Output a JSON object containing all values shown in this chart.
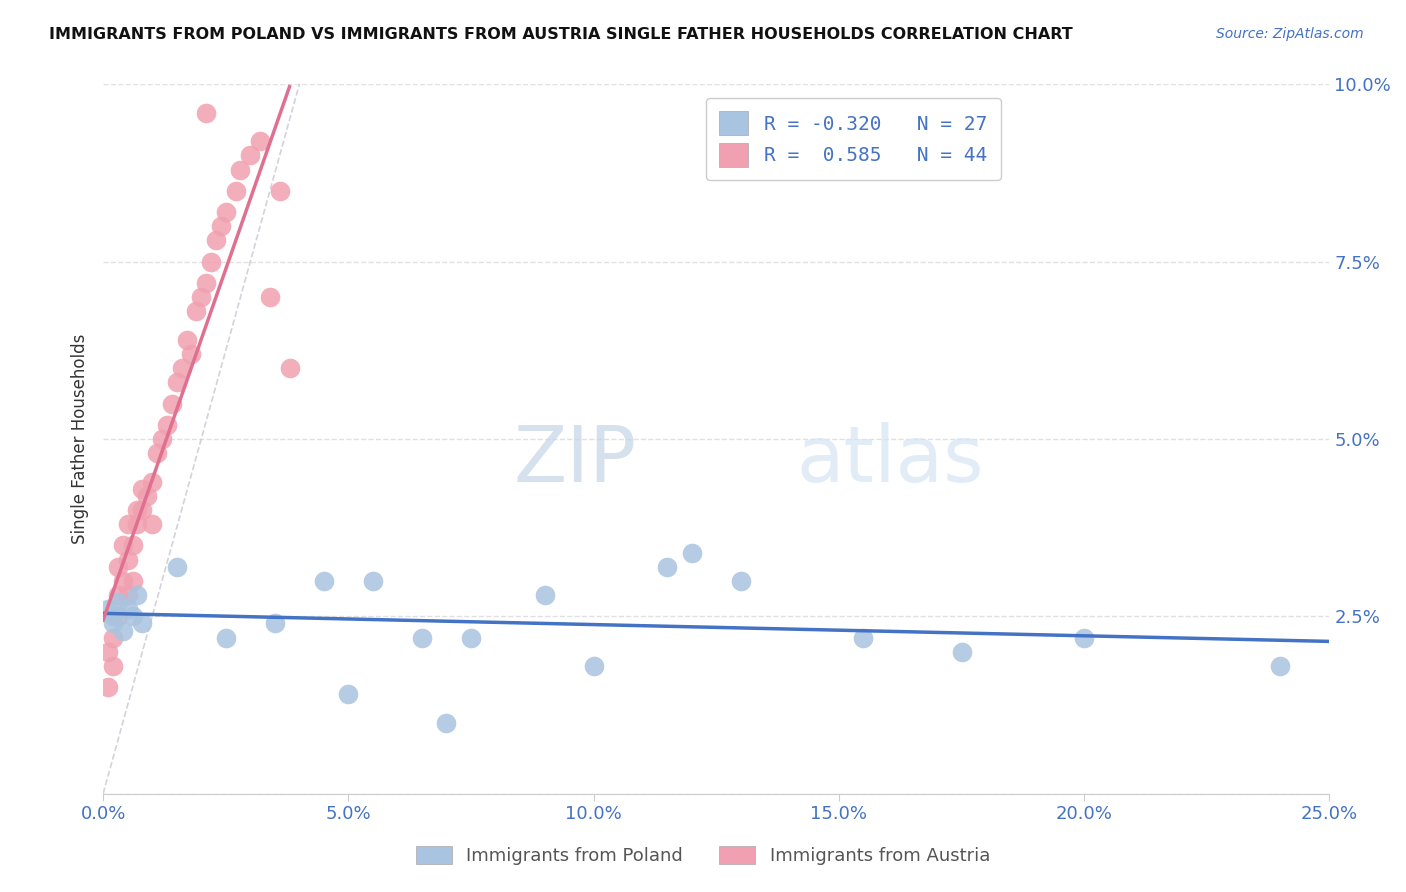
{
  "title": "IMMIGRANTS FROM POLAND VS IMMIGRANTS FROM AUSTRIA SINGLE FATHER HOUSEHOLDS CORRELATION CHART",
  "source": "Source: ZipAtlas.com",
  "ylabel_label": "Single Father Households",
  "xlim": [
    0.0,
    0.25
  ],
  "ylim": [
    0.0,
    0.1
  ],
  "poland_R": -0.32,
  "poland_N": 27,
  "austria_R": 0.585,
  "austria_N": 44,
  "poland_color": "#a8c4e0",
  "austria_color": "#f0a0b0",
  "poland_line_color": "#4472c4",
  "austria_line_color": "#e07090",
  "diag_line_color": "#c0c0cc",
  "legend_color": "#4472c4",
  "tick_color": "#4472c4",
  "poland_scatter_x": [
    0.001,
    0.002,
    0.002,
    0.003,
    0.004,
    0.005,
    0.006,
    0.007,
    0.008,
    0.015,
    0.025,
    0.035,
    0.045,
    0.055,
    0.065,
    0.075,
    0.09,
    0.1,
    0.115,
    0.13,
    0.155,
    0.175,
    0.2,
    0.24,
    0.05,
    0.12,
    0.07
  ],
  "poland_scatter_y": [
    0.026,
    0.025,
    0.024,
    0.027,
    0.023,
    0.026,
    0.025,
    0.028,
    0.024,
    0.032,
    0.022,
    0.024,
    0.03,
    0.03,
    0.022,
    0.022,
    0.028,
    0.018,
    0.032,
    0.03,
    0.022,
    0.02,
    0.022,
    0.018,
    0.014,
    0.034,
    0.01
  ],
  "austria_scatter_x": [
    0.001,
    0.001,
    0.002,
    0.002,
    0.003,
    0.003,
    0.003,
    0.004,
    0.004,
    0.005,
    0.005,
    0.005,
    0.006,
    0.006,
    0.007,
    0.007,
    0.008,
    0.008,
    0.009,
    0.01,
    0.01,
    0.011,
    0.012,
    0.013,
    0.014,
    0.015,
    0.016,
    0.017,
    0.018,
    0.019,
    0.02,
    0.021,
    0.022,
    0.023,
    0.024,
    0.025,
    0.027,
    0.028,
    0.03,
    0.032,
    0.034,
    0.036,
    0.038,
    0.021
  ],
  "austria_scatter_y": [
    0.015,
    0.02,
    0.022,
    0.018,
    0.025,
    0.028,
    0.032,
    0.03,
    0.035,
    0.028,
    0.033,
    0.038,
    0.03,
    0.035,
    0.038,
    0.04,
    0.04,
    0.043,
    0.042,
    0.038,
    0.044,
    0.048,
    0.05,
    0.052,
    0.055,
    0.058,
    0.06,
    0.064,
    0.062,
    0.068,
    0.07,
    0.072,
    0.075,
    0.078,
    0.08,
    0.082,
    0.085,
    0.088,
    0.09,
    0.092,
    0.07,
    0.085,
    0.06,
    0.096
  ],
  "watermark_zip": "ZIP",
  "watermark_atlas": "atlas",
  "background_color": "#ffffff",
  "grid_color": "#dddddd"
}
